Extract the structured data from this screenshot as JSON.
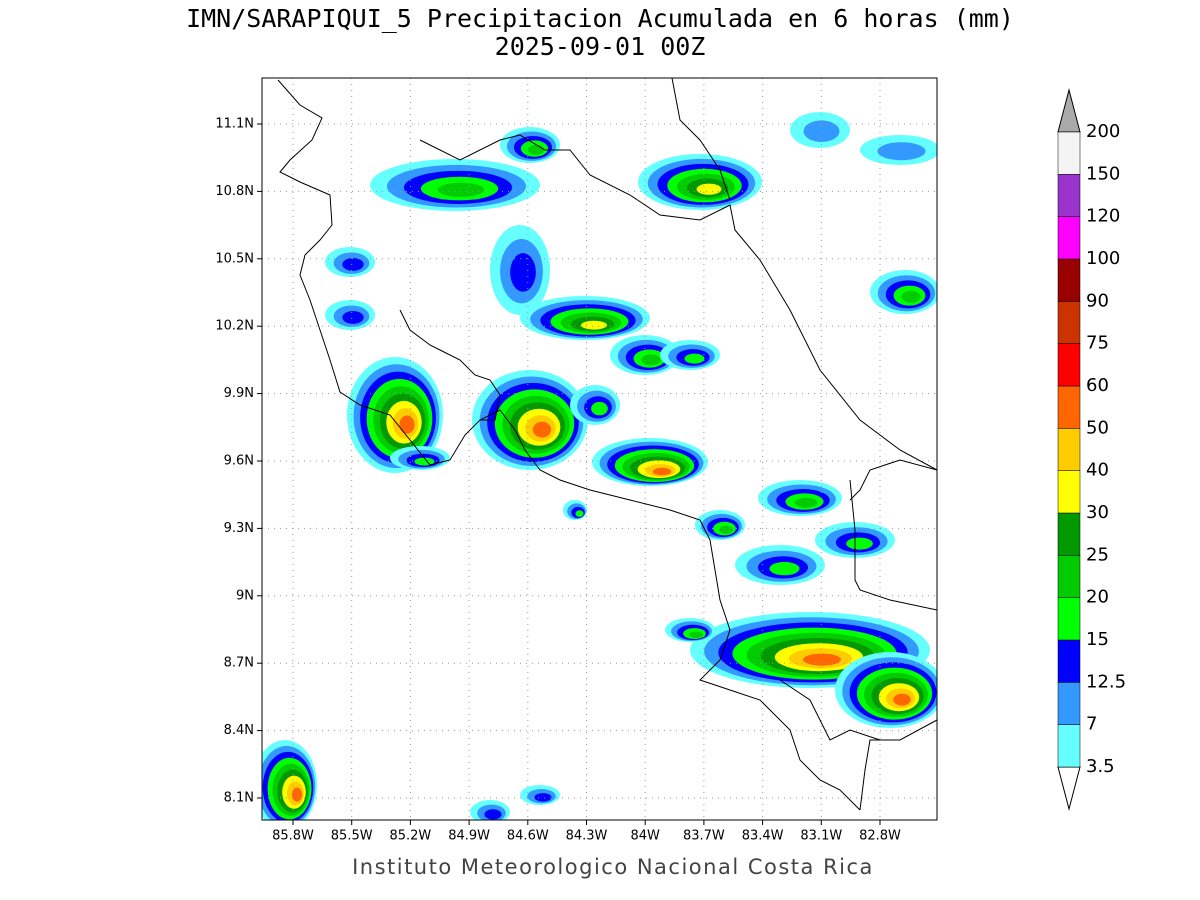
{
  "title": "IMN/SARAPIQUI_5 Precipitacion Acumulada en 6 horas (mm)",
  "subtitle": "2025-09-01 00Z",
  "map": {
    "x_labels": [
      "85.8W",
      "85.5W",
      "85.2W",
      "84.9W",
      "84.6W",
      "84.3W",
      "84W",
      "83.7W",
      "83.4W",
      "83.1W",
      "82.8W"
    ],
    "y_labels": [
      "11.1N",
      "10.8N",
      "10.5N",
      "10.2N",
      "9.9N",
      "9.6N",
      "9.3N",
      "9N",
      "8.7N",
      "8.4N",
      "8.1N"
    ]
  },
  "colorbar": {
    "levels": [
      3.5,
      7,
      12.5,
      15,
      20,
      25,
      30,
      40,
      50,
      60,
      75,
      90,
      100,
      120,
      150,
      200
    ],
    "colors": [
      "#66ffff",
      "#3399ff",
      "#0000ff",
      "#00ff00",
      "#00cc00",
      "#009900",
      "#ffff00",
      "#ffcc00",
      "#ff6600",
      "#ff0000",
      "#cc3300",
      "#990000",
      "#ff00ff",
      "#9933cc",
      "#f4f4f4"
    ],
    "over_color": "#aaaaaa",
    "under_color": "#ffffff"
  },
  "footer": "Instituto Meteorologico Nacional Costa Rica"
}
